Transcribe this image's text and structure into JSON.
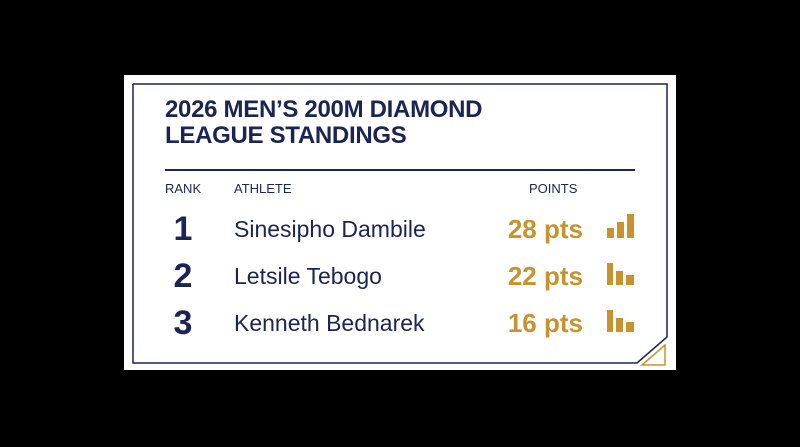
{
  "header": {
    "title": "2026 MEN’S 200M DIAMOND LEAGUE STANDINGS"
  },
  "table": {
    "columns": [
      "RANK",
      "ATHLETE",
      "POINTS"
    ],
    "rows": [
      [
        "1",
        "Sinesipho Dambile",
        "28 pts"
      ],
      [
        "2",
        "Letsile Tebogo",
        "22 pts"
      ],
      [
        "3",
        "Kenneth Bednarek",
        "16 pts"
      ]
    ]
  }
}
